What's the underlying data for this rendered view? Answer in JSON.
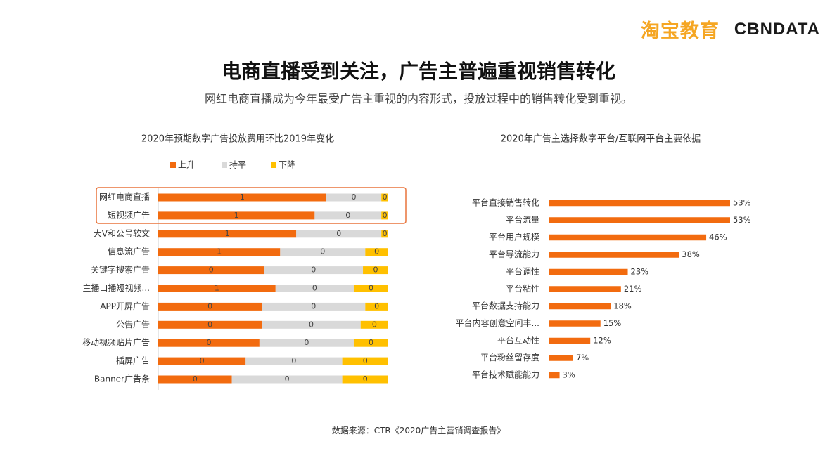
{
  "brand": {
    "cn": "淘宝教育",
    "en": "CBNDATA"
  },
  "headline": "电商直播受到关注，广告主普遍重视销售转化",
  "subhead": "网红电商直播成为今年最受广告主重视的内容形式，投放过程中的销售转化受到重视。",
  "source": "数据来源：CTR《2020广告主营销调查报告》",
  "colors": {
    "orange": "#f26b0f",
    "gray": "#d9d9d9",
    "yellow": "#ffc000",
    "highlight_border": "#e8743b"
  },
  "chart_data": [
    {
      "type": "bar",
      "stacked": true,
      "orientation": "horizontal",
      "title": "2020年预期数字广告投放费用环比2019年变化",
      "legend_position": "top",
      "categories": [
        "网红电商直播",
        "短视频广告",
        "大V和公号软文",
        "信息流广告",
        "关键字搜索广告",
        "主播口播短视频...",
        "APP开屏广告",
        "公告广告",
        "移动视频贴片广告",
        "插屏广告",
        "Banner广告条"
      ],
      "series": [
        {
          "name": "上升",
          "color": "#f26b0f",
          "values": [
            0.73,
            0.68,
            0.6,
            0.53,
            0.46,
            0.51,
            0.45,
            0.45,
            0.44,
            0.38,
            0.32
          ],
          "labels": [
            "1",
            "1",
            "1",
            "1",
            "0",
            "1",
            "0",
            "0",
            "0",
            "0",
            "0"
          ]
        },
        {
          "name": "持平",
          "color": "#d9d9d9",
          "values": [
            0.24,
            0.29,
            0.37,
            0.37,
            0.43,
            0.34,
            0.45,
            0.43,
            0.41,
            0.42,
            0.48
          ],
          "labels": [
            "0",
            "0",
            "0",
            "0",
            "0",
            "0",
            "0",
            "0",
            "0",
            "0",
            "0"
          ]
        },
        {
          "name": "下降",
          "color": "#ffc000",
          "values": [
            0.03,
            0.03,
            0.03,
            0.1,
            0.11,
            0.15,
            0.1,
            0.12,
            0.15,
            0.2,
            0.2
          ],
          "labels": [
            "0",
            "0",
            "0",
            "0",
            "0",
            "0",
            "0",
            "0",
            "0",
            "0",
            "0"
          ]
        }
      ],
      "highlighted_categories": [
        "网红电商直播",
        "短视频广告"
      ]
    },
    {
      "type": "bar",
      "orientation": "horizontal",
      "title": "2020年广告主选择数字平台/互联网平台主要依据",
      "categories": [
        "平台直接销售转化",
        "平台流量",
        "平台用户规模",
        "平台导流能力",
        "平台调性",
        "平台粘性",
        "平台数据支持能力",
        "平台内容创意空间丰...",
        "平台互动性",
        "平台粉丝留存度",
        "平台技术赋能能力"
      ],
      "values": [
        53,
        53,
        46,
        38,
        23,
        21,
        18,
        15,
        12,
        7,
        3
      ],
      "value_labels": [
        "53%",
        "53%",
        "46%",
        "38%",
        "23%",
        "21%",
        "18%",
        "15%",
        "12%",
        "7%",
        "3%"
      ],
      "color": "#f26b0f",
      "xlim": [
        0,
        55
      ]
    }
  ]
}
